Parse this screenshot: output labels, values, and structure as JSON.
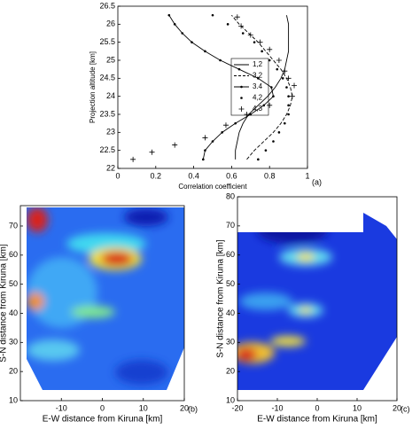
{
  "chart_data": [
    {
      "type": "line",
      "xlabel": "Correlation coefficient",
      "ylabel": "Projection altitude [km]",
      "panel_label": "(a)",
      "xlim": [
        0,
        1
      ],
      "xticks": [
        0,
        0.2,
        0.4,
        0.6,
        0.8,
        1
      ],
      "ylim": [
        22,
        26.5
      ],
      "yticks": [
        22,
        22.5,
        23,
        23.5,
        24,
        24.5,
        25,
        25.5,
        26,
        26.5
      ],
      "series": [
        {
          "name": "1,2",
          "color": "#000000",
          "line": "solid",
          "marker": "none",
          "y": [
            22.25,
            22.5,
            22.75,
            23,
            23.25,
            23.5,
            23.75,
            24,
            24.25,
            24.5,
            24.75,
            25,
            25.25,
            25.5,
            25.75,
            26,
            26.25
          ],
          "x": [
            0.62,
            0.62,
            0.63,
            0.64,
            0.66,
            0.69,
            0.74,
            0.79,
            0.83,
            0.86,
            0.88,
            0.89,
            0.9,
            0.9,
            0.9,
            0.9,
            0.89
          ]
        },
        {
          "name": "3,2",
          "color": "#000000",
          "line": "dashed",
          "marker": "none",
          "y": [
            22.25,
            22.5,
            22.75,
            23,
            23.25,
            23.5,
            23.75,
            24,
            24.25,
            24.5,
            24.75,
            25,
            25.25,
            25.5,
            25.75,
            26,
            26.25
          ],
          "x": [
            0.68,
            0.72,
            0.77,
            0.82,
            0.86,
            0.89,
            0.91,
            0.92,
            0.91,
            0.89,
            0.86,
            0.82,
            0.78,
            0.74,
            0.69,
            0.64,
            0.6
          ]
        },
        {
          "name": "3.4",
          "color": "#000000",
          "line": "solid",
          "marker": "dot",
          "y": [
            22.25,
            22.5,
            22.75,
            23,
            23.25,
            23.5,
            23.75,
            24,
            24.25,
            24.5,
            24.75,
            25,
            25.25,
            25.5,
            25.75,
            26,
            26.25
          ],
          "x": [
            0.45,
            0.46,
            0.5,
            0.55,
            0.62,
            0.7,
            0.77,
            0.82,
            0.81,
            0.74,
            0.64,
            0.54,
            0.46,
            0.39,
            0.34,
            0.3,
            0.27
          ]
        },
        {
          "name": "4,2",
          "color": "#000000",
          "line": "none",
          "marker": "dot",
          "y": [
            22.25,
            22.5,
            22.75,
            23,
            23.25,
            23.5,
            23.75,
            24,
            24.25,
            24.5,
            24.75,
            25,
            25.25,
            25.5,
            25.75,
            26,
            26.25
          ],
          "x": [
            0.74,
            0.78,
            0.82,
            0.85,
            0.88,
            0.9,
            0.9,
            0.9,
            0.89,
            0.87,
            0.84,
            0.8,
            0.76,
            0.72,
            0.66,
            0.58,
            0.5
          ]
        },
        {
          "name": "4,3",
          "color": "#000000",
          "line": "none",
          "marker": "plus",
          "y": [
            22.25,
            22.45,
            22.65,
            22.85,
            23.2,
            23.5,
            23.75,
            24,
            24.3,
            24.5,
            24.7,
            25,
            25.3,
            25.5,
            25.7,
            25.95,
            26.2
          ],
          "x": [
            0.08,
            0.18,
            0.3,
            0.46,
            0.57,
            0.68,
            0.8,
            0.92,
            0.93,
            0.9,
            0.88,
            0.85,
            0.8,
            0.75,
            0.7,
            0.65,
            0.63
          ]
        }
      ]
    },
    {
      "type": "heatmap",
      "xlabel": "E-W distance from Kiruna [km]",
      "ylabel": "S-N distance from Kiruna [km]",
      "panel_label": "(b)",
      "xlim": [
        -20,
        20
      ],
      "xticks": [
        -10,
        0,
        10,
        20
      ],
      "ylim": [
        10,
        77
      ],
      "yticks": [
        10,
        20,
        30,
        40,
        50,
        60,
        70
      ]
    },
    {
      "type": "heatmap",
      "xlabel": "E-W distance from Kiruna [km]",
      "ylabel": "S-N distance from Kiruna [km]",
      "panel_label": "(c)",
      "xlim": [
        -20,
        20
      ],
      "xticks": [
        -20,
        -10,
        0,
        10,
        20
      ],
      "ylim": [
        10,
        80
      ],
      "yticks": [
        10,
        20,
        30,
        40,
        50,
        60,
        70,
        80
      ]
    }
  ]
}
